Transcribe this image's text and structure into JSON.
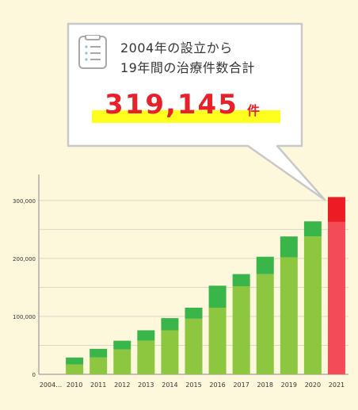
{
  "callout": {
    "line1": "2004年の設立から",
    "line2": "19年間の治療件数合計",
    "total_value": "319,145",
    "total_unit": "件",
    "icon": "document-list-icon"
  },
  "colors": {
    "background": "#fdf8dc",
    "bar_light_green": "#8dc63f",
    "bar_dark_green": "#39b54a",
    "bar_highlight_light": "#f44c57",
    "bar_highlight_dark": "#ec1c24",
    "total_text": "#e8202a",
    "highlight_marker": "#ffff1e"
  },
  "chart_data": {
    "type": "bar",
    "stacked": true,
    "categories": [
      "2004…",
      "2010",
      "2011",
      "2012",
      "2013",
      "2014",
      "2015",
      "2016",
      "2017",
      "2018",
      "2019",
      "2020",
      "2021"
    ],
    "series": [
      {
        "values": [
          0,
          17000,
          29000,
          43000,
          58000,
          76000,
          96000,
          115000,
          152000,
          173000,
          202000,
          238000,
          263000
        ]
      },
      {
        "values": [
          0,
          12000,
          15000,
          15000,
          18000,
          21000,
          19000,
          38000,
          21000,
          30000,
          36000,
          26000,
          43000
        ]
      }
    ],
    "highlight_category": "2021",
    "y_ticks": [
      0,
      100000,
      200000,
      300000
    ],
    "y_tick_labels": [
      "0",
      "100,000",
      "200,000",
      "300,000"
    ],
    "ylim": [
      0,
      345000
    ],
    "grid": true
  }
}
